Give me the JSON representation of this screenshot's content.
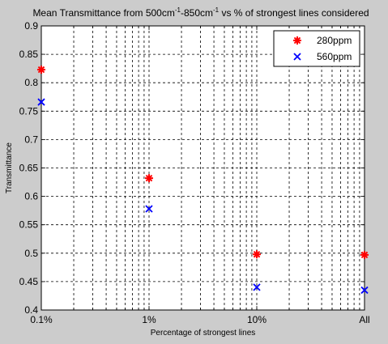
{
  "chart_data": {
    "type": "scatter",
    "title": {
      "prefix": "Mean Transmittance from 500cm",
      "sup1": "-1",
      "mid": "-850cm",
      "sup2": "-1",
      "suffix": " vs % of strongest lines considered"
    },
    "xlabel": "Percentage of strongest lines",
    "ylabel": "Transmittance",
    "x_scale": "log",
    "xlim": [
      0.1,
      100
    ],
    "ylim": [
      0.4,
      0.9
    ],
    "grid": "on (dashed, major and minor)",
    "legend_location": "top-right",
    "x_ticks": [
      {
        "value": 0.1,
        "label": "0.1%"
      },
      {
        "value": 1,
        "label": "1%"
      },
      {
        "value": 10,
        "label": "10%"
      },
      {
        "value": 100,
        "label": "All"
      }
    ],
    "y_ticks": [
      {
        "value": 0.4,
        "label": "0.4"
      },
      {
        "value": 0.45,
        "label": "0.45"
      },
      {
        "value": 0.5,
        "label": "0.5"
      },
      {
        "value": 0.55,
        "label": "0.55"
      },
      {
        "value": 0.6,
        "label": "0.6"
      },
      {
        "value": 0.65,
        "label": "0.65"
      },
      {
        "value": 0.7,
        "label": "0.7"
      },
      {
        "value": 0.75,
        "label": "0.75"
      },
      {
        "value": 0.8,
        "label": "0.8"
      },
      {
        "value": 0.85,
        "label": "0.85"
      },
      {
        "value": 0.9,
        "label": "0.9"
      }
    ],
    "series": [
      {
        "name": "280ppm",
        "marker": "asterisk",
        "color": "#ff0000",
        "x": [
          0.1,
          1,
          10,
          100
        ],
        "y": [
          0.823,
          0.632,
          0.498,
          0.497
        ]
      },
      {
        "name": "560ppm",
        "marker": "x",
        "color": "#0000ff",
        "x": [
          0.1,
          1,
          10,
          100
        ],
        "y": [
          0.766,
          0.578,
          0.44,
          0.435
        ]
      }
    ]
  }
}
